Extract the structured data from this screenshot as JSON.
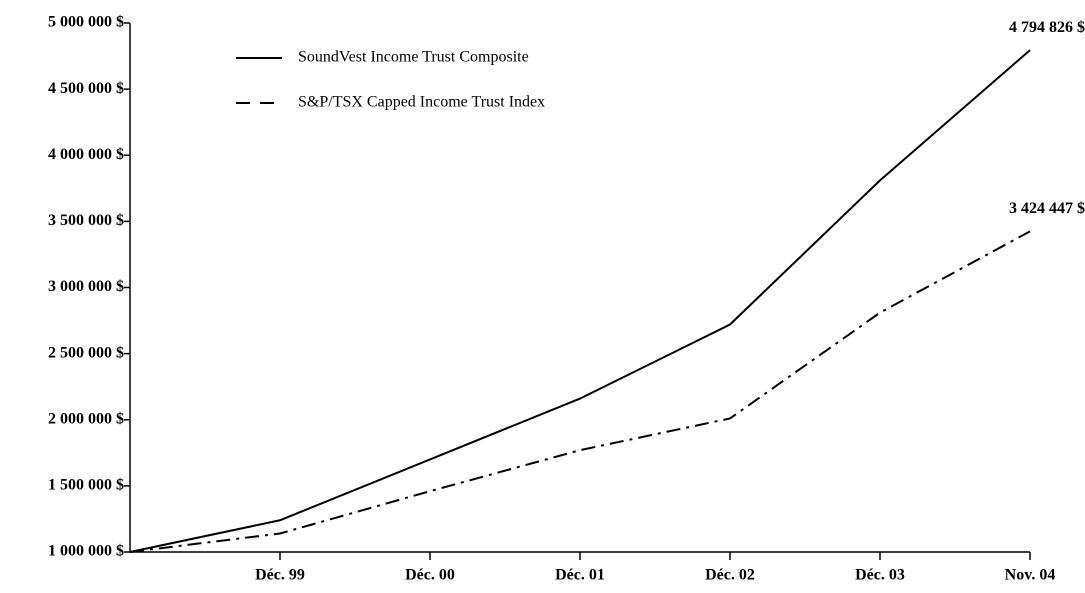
{
  "chart_data": {
    "type": "line",
    "categories": [
      null,
      "Déc. 99",
      "Déc. 00",
      "Déc. 01",
      "Déc. 02",
      "Déc. 03",
      "Nov. 04"
    ],
    "series": [
      {
        "name": "SoundVest Income Trust Composite",
        "color": "#000000",
        "dash": "solid",
        "values": [
          1000000,
          1240000,
          1700000,
          2160000,
          2720000,
          3810000,
          4794826
        ],
        "value_labels": [
          null,
          null,
          null,
          null,
          null,
          null,
          "4 794 826 $"
        ]
      },
      {
        "name": "S&P/TSX Capped Income Trust Index",
        "color": "#000000",
        "dash": "dashdot",
        "values": [
          1000000,
          1140000,
          1460000,
          1770000,
          2010000,
          2810000,
          3424447
        ],
        "value_labels": [
          null,
          null,
          null,
          null,
          null,
          null,
          "3 424 447 $"
        ]
      }
    ],
    "ylim": [
      1000000,
      5000000
    ],
    "yticks": [
      {
        "value": 1000000,
        "label": "1 000 000 $"
      },
      {
        "value": 1500000,
        "label": "1 500 000 $"
      },
      {
        "value": 2000000,
        "label": "2 000 000 $"
      },
      {
        "value": 2500000,
        "label": "2 500 000 $"
      },
      {
        "value": 3000000,
        "label": "3 000 000 $"
      },
      {
        "value": 3500000,
        "label": "3 500 000 $"
      },
      {
        "value": 4000000,
        "label": "4 000 000 $"
      },
      {
        "value": 4500000,
        "label": "4 500 000 $"
      },
      {
        "value": 5000000,
        "label": "5 000 000 $"
      }
    ],
    "grid": false,
    "legend": "upper left"
  }
}
